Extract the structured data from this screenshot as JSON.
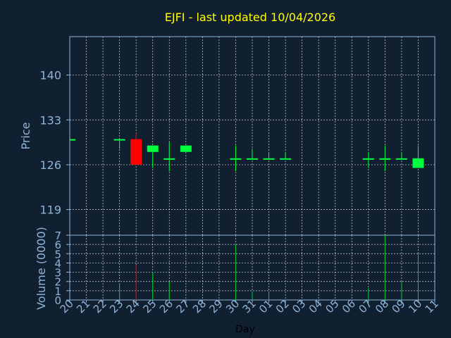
{
  "chart_data": [
    {
      "type": "candlestick",
      "title": "EJFI - last updated 10/04/2026",
      "ylabel": "Price",
      "ylim": [
        115,
        146
      ],
      "yticks": [
        119,
        126,
        133,
        140
      ],
      "up_color": "#00ff3c",
      "down_color": "#ff0000",
      "x": [
        "20",
        "21",
        "22",
        "23",
        "24",
        "25",
        "26",
        "27",
        "28",
        "29",
        "30",
        "31",
        "01",
        "02",
        "03",
        "04",
        "05",
        "06",
        "07",
        "08",
        "09",
        "10",
        "11"
      ],
      "candles": [
        {
          "day": "20",
          "open": 130.0,
          "close": 130.0,
          "high": 130.0,
          "low": 130.0
        },
        {
          "day": "23",
          "open": 130.0,
          "close": 130.0,
          "high": 130.0,
          "low": 128.5
        },
        {
          "day": "24",
          "open": 130.0,
          "close": 126.0,
          "high": 131.0,
          "low": 126.0
        },
        {
          "day": "25",
          "open": 128.0,
          "close": 129.0,
          "high": 129.0,
          "low": 125.5
        },
        {
          "day": "26",
          "open": 127.0,
          "close": 127.0,
          "high": 129.5,
          "low": 125.0
        },
        {
          "day": "27",
          "open": 128.0,
          "close": 129.0,
          "high": 129.0,
          "low": 128.0
        },
        {
          "day": "30",
          "open": 127.0,
          "close": 127.0,
          "high": 129.0,
          "low": 125.0
        },
        {
          "day": "31",
          "open": 127.0,
          "close": 127.0,
          "high": 128.5,
          "low": 127.0
        },
        {
          "day": "01",
          "open": 127.0,
          "close": 127.0,
          "high": 128.0,
          "low": 127.0
        },
        {
          "day": "02",
          "open": 127.0,
          "close": 127.0,
          "high": 128.0,
          "low": 127.0
        },
        {
          "day": "07",
          "open": 127.0,
          "close": 127.0,
          "high": 128.0,
          "low": 125.5
        },
        {
          "day": "08",
          "open": 127.0,
          "close": 127.0,
          "high": 129.0,
          "low": 125.0
        },
        {
          "day": "09",
          "open": 127.0,
          "close": 127.0,
          "high": 128.0,
          "low": 127.0
        },
        {
          "day": "10",
          "open": 125.5,
          "close": 127.0,
          "high": 129.0,
          "low": 125.5
        }
      ]
    },
    {
      "type": "bar",
      "ylabel": "Volume (0000)",
      "xlabel": "Day",
      "ylim": [
        0,
        7
      ],
      "yticks": [
        0,
        1,
        2,
        3,
        4,
        5,
        6,
        7
      ],
      "categories": [
        "20",
        "21",
        "22",
        "23",
        "24",
        "25",
        "26",
        "27",
        "28",
        "29",
        "30",
        "31",
        "01",
        "02",
        "03",
        "04",
        "05",
        "06",
        "07",
        "08",
        "09",
        "10",
        "11"
      ],
      "values": [
        0,
        0,
        0,
        1.8,
        3.8,
        3.0,
        2.0,
        0,
        0,
        0,
        6.0,
        0.9,
        0.9,
        0,
        0,
        0,
        0,
        0,
        1.3,
        7.0,
        2.0,
        5.0,
        0
      ],
      "bar_colors": {
        "up": "#00cc33",
        "down": "#ff0000"
      },
      "down_days": [
        "24"
      ]
    }
  ]
}
